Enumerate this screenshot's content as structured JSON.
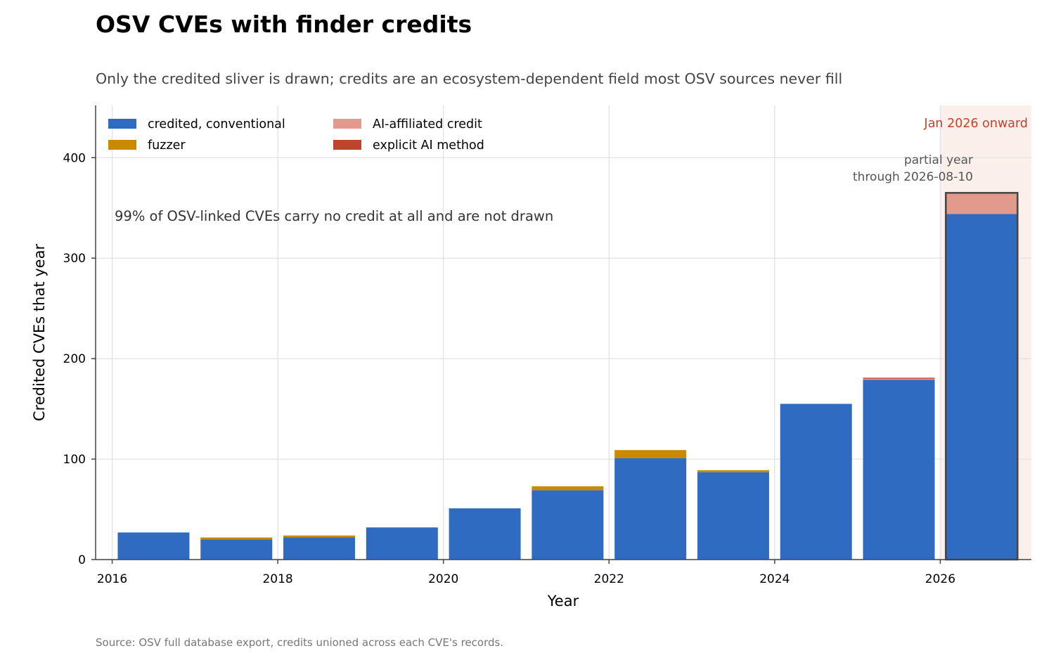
{
  "chart_data": {
    "type": "bar",
    "stacked": true,
    "title": "OSV CVEs with finder credits",
    "subtitle": "Only the credited sliver is drawn; credits are an ecosystem-dependent field most OSV sources never fill",
    "xlabel": "Year",
    "ylabel": "Credited CVEs that year",
    "x": [
      2016,
      2017,
      2018,
      2019,
      2020,
      2021,
      2022,
      2023,
      2024,
      2025,
      2026
    ],
    "x_ticks": [
      "2016",
      "2018",
      "2020",
      "2022",
      "2024",
      "2026"
    ],
    "y_ticks": [
      "0",
      "100",
      "200",
      "300",
      "400"
    ],
    "xlim": [
      2015.8,
      2027.1
    ],
    "ylim": [
      0,
      452
    ],
    "grid": true,
    "legend_position": "top-left",
    "series": [
      {
        "name": "credited, conventional",
        "color": "#2f6bc1",
        "values": [
          27,
          20,
          22,
          32,
          51,
          69,
          101,
          87,
          155,
          179,
          344
        ]
      },
      {
        "name": "fuzzer",
        "color": "#c98a00",
        "values": [
          0,
          2,
          2,
          0,
          0,
          4,
          8,
          2,
          0,
          0,
          0
        ]
      },
      {
        "name": "AI-affiliated credit",
        "color": "#e19a8c",
        "values": [
          0,
          0,
          0,
          0,
          0,
          0,
          0,
          0,
          0,
          1,
          21
        ]
      },
      {
        "name": "explicit AI method",
        "color": "#c0432d",
        "values": [
          0,
          0,
          0,
          0,
          0,
          0,
          0,
          0,
          0,
          1,
          0
        ]
      }
    ],
    "highlight_band": {
      "label": "Jan 2026 onward",
      "color": "#fbefec",
      "label_color": "#c0432d",
      "from_year": 2026
    },
    "annotations": {
      "no_credit_note": "99% of OSV-linked CVEs carry no credit at all and are not drawn",
      "partial_year_line1": "partial year",
      "partial_year_line2": "through 2026-08-10"
    },
    "source": "Source: OSV full database export, credits unioned across each CVE's records."
  }
}
